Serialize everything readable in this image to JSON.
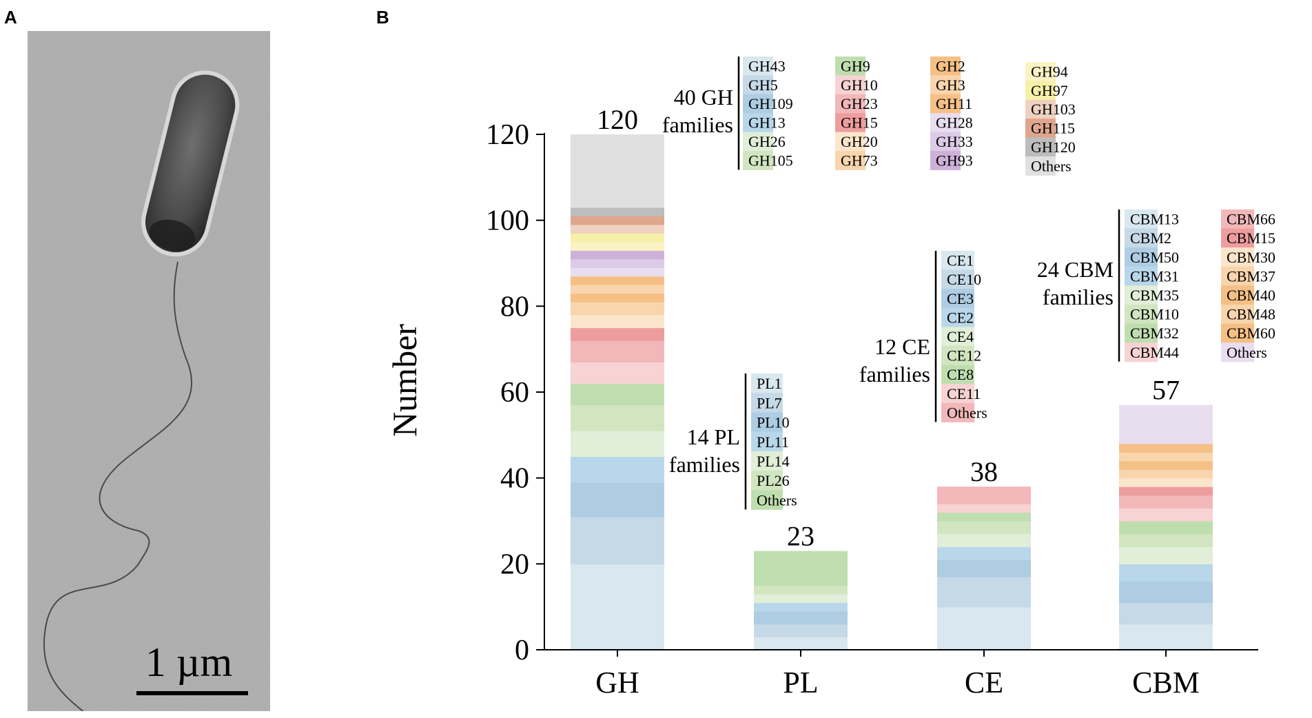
{
  "panels": {
    "a": {
      "letter": "A",
      "scale_bar_label": "1 µm",
      "image_kind": "electron micrograph of a rod-shaped bacterium with a flagellum"
    },
    "b": {
      "letter": "B"
    }
  },
  "palette": {
    "blue_pale": "#d9e7ef",
    "blue_light": "#c5d9e7",
    "blue_mid": "#aecde3",
    "blue_sky": "#b9d7ea",
    "green_pale": "#e1eed8",
    "green_light": "#d1e6c0",
    "green_mid": "#bfdeb0",
    "pink_pale": "#f7d3d3",
    "pink_mid": "#f2b8b9",
    "red_mid": "#ee9d9f",
    "peach_pale": "#fbe6cc",
    "peach_mid": "#f8d5ad",
    "orange_mid": "#f5c086",
    "lavender_pale": "#e9def0",
    "lavender_mid": "#dccbe6",
    "purple_mid": "#cdb1d9",
    "yellow_pale": "#fbf3c4",
    "yellow_mid": "#f6f0a8",
    "tan_pale": "#efd1c1",
    "tan_mid": "#dfa68d",
    "gray_mid": "#bdbdbd",
    "gray_pale": "#e0e0e0"
  },
  "chart_data": {
    "type": "bar",
    "stacked": true,
    "ylabel": "Number",
    "ylim": [
      0,
      120
    ],
    "yticks": [
      "0",
      "20",
      "40",
      "60",
      "80",
      "100",
      "120"
    ],
    "categories": [
      "GH",
      "PL",
      "CE",
      "CBM"
    ],
    "bars": [
      {
        "category": "GH",
        "total": 120,
        "total_label": "120",
        "legend_title_lines": [
          "40 GH",
          "families"
        ],
        "legend_columns": 4,
        "segments": [
          {
            "family": "GH43",
            "value": 20,
            "color": "#d9e7ef"
          },
          {
            "family": "GH5",
            "value": 11,
            "color": "#c5d9e7"
          },
          {
            "family": "GH109",
            "value": 8,
            "color": "#aecde3"
          },
          {
            "family": "GH13",
            "value": 6,
            "color": "#b9d7ea"
          },
          {
            "family": "GH26",
            "value": 6,
            "color": "#e1eed8"
          },
          {
            "family": "GH105",
            "value": 6,
            "color": "#d1e6c0"
          },
          {
            "family": "GH9",
            "value": 5,
            "color": "#bfdeb0"
          },
          {
            "family": "GH10",
            "value": 5,
            "color": "#f7d3d3"
          },
          {
            "family": "GH23",
            "value": 5,
            "color": "#f2b8b9"
          },
          {
            "family": "GH15",
            "value": 3,
            "color": "#ee9d9f"
          },
          {
            "family": "GH20",
            "value": 3,
            "color": "#fbe6cc"
          },
          {
            "family": "GH73",
            "value": 3,
            "color": "#f8d5ad"
          },
          {
            "family": "GH2",
            "value": 2,
            "color": "#f5c086"
          },
          {
            "family": "GH3",
            "value": 2,
            "color": "#f8d5ad"
          },
          {
            "family": "GH11",
            "value": 2,
            "color": "#f5c086"
          },
          {
            "family": "GH28",
            "value": 2,
            "color": "#e9def0"
          },
          {
            "family": "GH33",
            "value": 2,
            "color": "#dccbe6"
          },
          {
            "family": "GH93",
            "value": 2,
            "color": "#cdb1d9"
          },
          {
            "family": "GH94",
            "value": 2,
            "color": "#fbf3c4"
          },
          {
            "family": "GH97",
            "value": 2,
            "color": "#f6f0a8"
          },
          {
            "family": "GH103",
            "value": 2,
            "color": "#efd1c1"
          },
          {
            "family": "GH115",
            "value": 2,
            "color": "#dfa68d"
          },
          {
            "family": "GH120",
            "value": 2,
            "color": "#bdbdbd"
          },
          {
            "family": "Others",
            "value": 17,
            "color": "#e0e0e0"
          }
        ]
      },
      {
        "category": "PL",
        "total": 23,
        "total_label": "23",
        "legend_title_lines": [
          "14 PL",
          "families"
        ],
        "legend_columns": 1,
        "segments": [
          {
            "family": "PL1",
            "value": 3,
            "color": "#d9e7ef"
          },
          {
            "family": "PL7",
            "value": 3,
            "color": "#c5d9e7"
          },
          {
            "family": "PL10",
            "value": 3,
            "color": "#aecde3"
          },
          {
            "family": "PL11",
            "value": 2,
            "color": "#b9d7ea"
          },
          {
            "family": "PL14",
            "value": 2,
            "color": "#e1eed8"
          },
          {
            "family": "PL26",
            "value": 2,
            "color": "#d1e6c0"
          },
          {
            "family": "Others",
            "value": 8,
            "color": "#bfdeb0"
          }
        ]
      },
      {
        "category": "CE",
        "total": 38,
        "total_label": "38",
        "legend_title_lines": [
          "12 CE",
          "families"
        ],
        "legend_columns": 1,
        "segments": [
          {
            "family": "CE1",
            "value": 10,
            "color": "#d9e7ef"
          },
          {
            "family": "CE10",
            "value": 7,
            "color": "#c5d9e7"
          },
          {
            "family": "CE3",
            "value": 4,
            "color": "#aecde3"
          },
          {
            "family": "CE2",
            "value": 3,
            "color": "#b9d7ea"
          },
          {
            "family": "CE4",
            "value": 3,
            "color": "#e1eed8"
          },
          {
            "family": "CE12",
            "value": 3,
            "color": "#d1e6c0"
          },
          {
            "family": "CE8",
            "value": 2,
            "color": "#bfdeb0"
          },
          {
            "family": "CE11",
            "value": 2,
            "color": "#f7d3d3"
          },
          {
            "family": "Others",
            "value": 4,
            "color": "#f2b8b9"
          }
        ]
      },
      {
        "category": "CBM",
        "total": 57,
        "total_label": "57",
        "legend_title_lines": [
          "24 CBM",
          "families"
        ],
        "legend_columns": 2,
        "segments": [
          {
            "family": "CBM13",
            "value": 6,
            "color": "#d9e7ef"
          },
          {
            "family": "CBM2",
            "value": 5,
            "color": "#c5d9e7"
          },
          {
            "family": "CBM50",
            "value": 5,
            "color": "#aecde3"
          },
          {
            "family": "CBM31",
            "value": 4,
            "color": "#b9d7ea"
          },
          {
            "family": "CBM35",
            "value": 4,
            "color": "#e1eed8"
          },
          {
            "family": "CBM10",
            "value": 3,
            "color": "#d1e6c0"
          },
          {
            "family": "CBM32",
            "value": 3,
            "color": "#bfdeb0"
          },
          {
            "family": "CBM44",
            "value": 3,
            "color": "#f7d3d3"
          },
          {
            "family": "CBM66",
            "value": 3,
            "color": "#f2b8b9"
          },
          {
            "family": "CBM15",
            "value": 2,
            "color": "#ee9d9f"
          },
          {
            "family": "CBM30",
            "value": 2,
            "color": "#fbe6cc"
          },
          {
            "family": "CBM37",
            "value": 2,
            "color": "#f8d5ad"
          },
          {
            "family": "CBM40",
            "value": 2,
            "color": "#f5c086"
          },
          {
            "family": "CBM48",
            "value": 2,
            "color": "#f8d5ad"
          },
          {
            "family": "CBM60",
            "value": 2,
            "color": "#f5c086"
          },
          {
            "family": "Others",
            "value": 9,
            "color": "#e9def0"
          }
        ]
      }
    ]
  }
}
